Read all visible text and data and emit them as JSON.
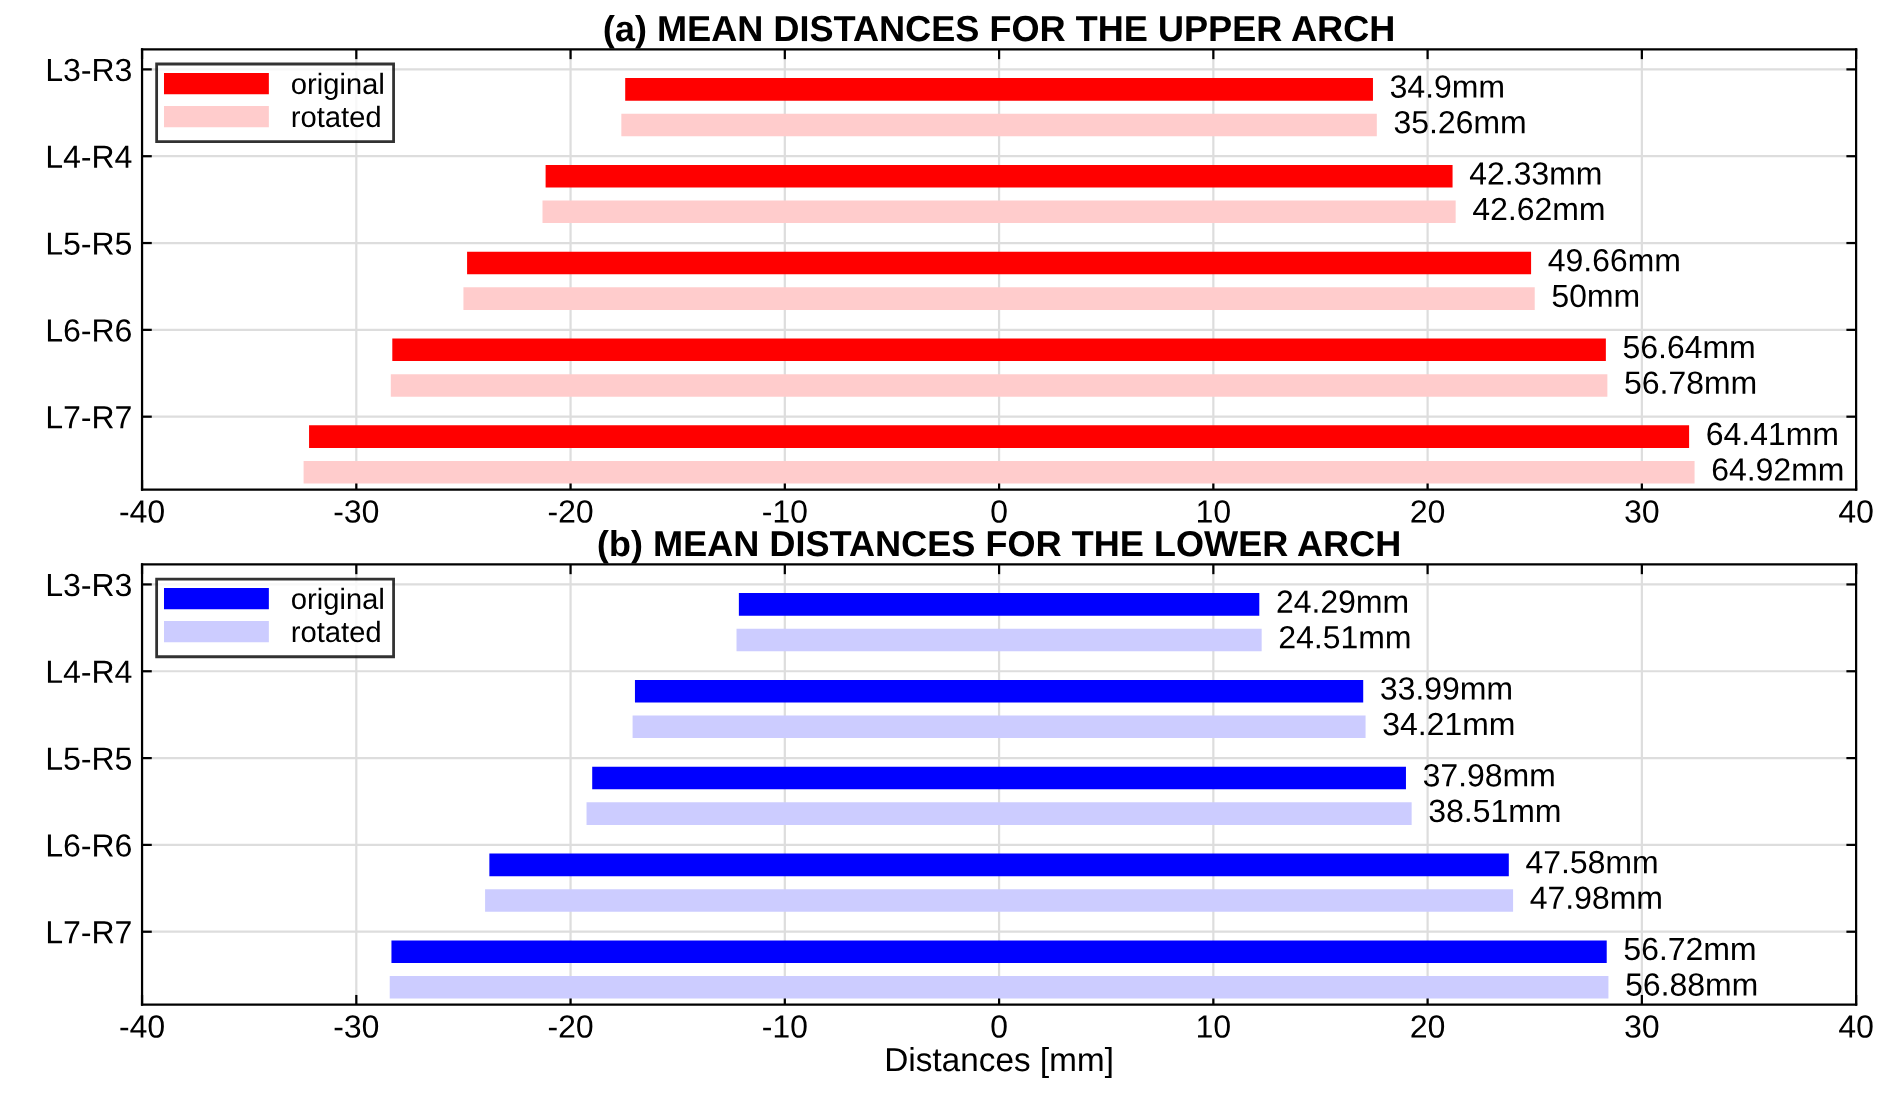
{
  "chart_data": [
    {
      "type": "bar",
      "orientation": "horizontal",
      "title": "(a) MEAN DISTANCES FOR THE UPPER ARCH",
      "categories": [
        "L3-R3",
        "L4-R4",
        "L5-R5",
        "L6-R6",
        "L7-R7"
      ],
      "series": [
        {
          "name": "original",
          "color": "#ff0000",
          "values": [
            34.9,
            42.33,
            49.66,
            56.64,
            64.41
          ],
          "base": [
            -17.45,
            -21.165,
            -24.83,
            -28.32,
            -32.205
          ],
          "value_labels": [
            "34.9mm",
            "42.33mm",
            "49.66mm",
            "56.64mm",
            "64.41mm"
          ]
        },
        {
          "name": "rotated",
          "color": "#ffcccc",
          "values": [
            35.26,
            42.62,
            50,
            56.78,
            64.92
          ],
          "base": [
            -17.63,
            -21.31,
            -25,
            -28.39,
            -32.46
          ],
          "value_labels": [
            "35.26mm",
            "42.62mm",
            "50mm",
            "56.78mm",
            "64.92mm"
          ]
        }
      ],
      "xlim": [
        -40,
        40
      ],
      "xticks": [
        -40,
        -30,
        -20,
        -10,
        0,
        10,
        20,
        30,
        40
      ],
      "grid": true,
      "legend": "top left"
    },
    {
      "type": "bar",
      "orientation": "horizontal",
      "title": "(b) MEAN DISTANCES FOR THE LOWER ARCH",
      "xlabel": "Distances [mm]",
      "categories": [
        "L3-R3",
        "L4-R4",
        "L5-R5",
        "L6-R6",
        "L7-R7"
      ],
      "series": [
        {
          "name": "original",
          "color": "#0000ff",
          "values": [
            24.29,
            33.99,
            37.98,
            47.58,
            56.72
          ],
          "base": [
            -12.145,
            -16.995,
            -18.99,
            -23.79,
            -28.36
          ],
          "value_labels": [
            "24.29mm",
            "33.99mm",
            "37.98mm",
            "47.58mm",
            "56.72mm"
          ]
        },
        {
          "name": "rotated",
          "color": "#ccccff",
          "values": [
            24.51,
            34.21,
            38.51,
            47.98,
            56.88
          ],
          "base": [
            -12.255,
            -17.105,
            -19.255,
            -23.99,
            -28.44
          ],
          "value_labels": [
            "24.51mm",
            "34.21mm",
            "38.51mm",
            "47.98mm",
            "56.88mm"
          ]
        }
      ],
      "xlim": [
        -40,
        40
      ],
      "xticks": [
        -40,
        -30,
        -20,
        -10,
        0,
        10,
        20,
        30,
        40
      ],
      "grid": true,
      "legend": "top left"
    }
  ]
}
